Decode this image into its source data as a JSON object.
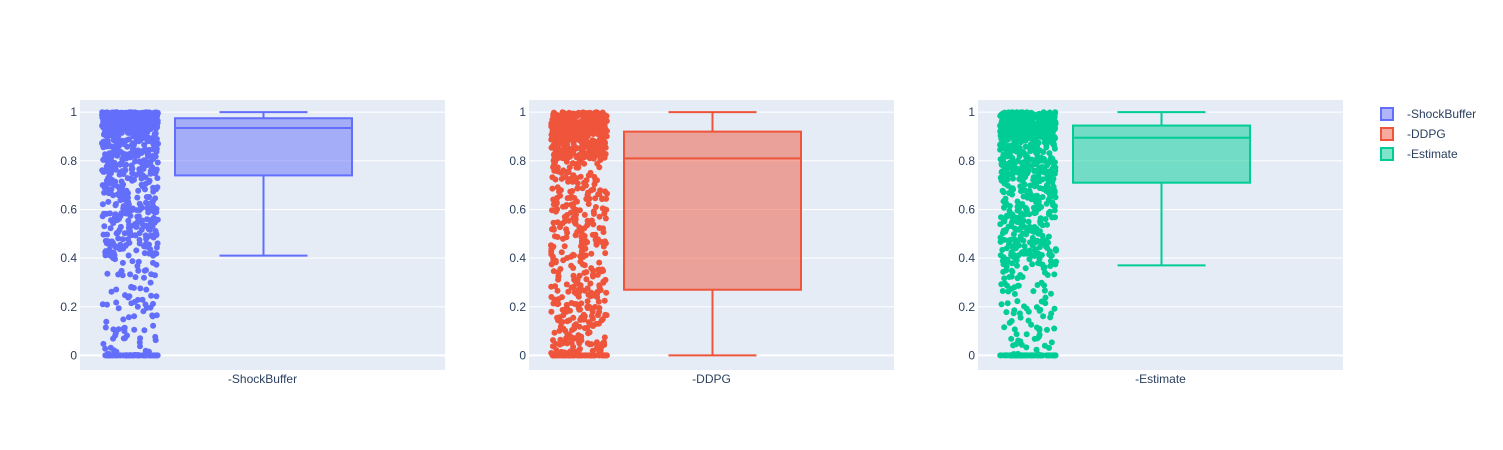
{
  "colors": {
    "plot_bg": "#e5ecf6",
    "grid": "#ffffff",
    "text": "#2a3f5f"
  },
  "chart_data": [
    {
      "type": "box",
      "category": "-ShockBuffer",
      "color": "#636efa",
      "box": {
        "min": 0.41,
        "q1": 0.74,
        "median": 0.935,
        "q3": 0.975,
        "max": 1.0
      },
      "points": "jittered outcome points in [0, 1], dense near 0 and near 1",
      "yticks": [
        0,
        0.2,
        0.4,
        0.6,
        0.8,
        1
      ],
      "ylim": [
        -0.06,
        1.05
      ]
    },
    {
      "type": "box",
      "category": "-DDPG",
      "color": "#ef553b",
      "box": {
        "min": 0.0,
        "q1": 0.27,
        "median": 0.81,
        "q3": 0.92,
        "max": 1.0
      },
      "points": "jittered outcome points in [0, 1], dense near 0 and near 1",
      "yticks": [
        0,
        0.2,
        0.4,
        0.6,
        0.8,
        1
      ],
      "ylim": [
        -0.06,
        1.05
      ]
    },
    {
      "type": "box",
      "category": "-Estimate",
      "color": "#00cc96",
      "box": {
        "min": 0.37,
        "q1": 0.71,
        "median": 0.895,
        "q3": 0.945,
        "max": 1.0
      },
      "points": "jittered outcome points in [0, 1], dense near 0 and near 1",
      "yticks": [
        0,
        0.2,
        0.4,
        0.6,
        0.8,
        1
      ],
      "ylim": [
        -0.06,
        1.05
      ]
    }
  ],
  "legend": {
    "placement": "top-right",
    "items": [
      "-ShockBuffer",
      "-DDPG",
      "-Estimate"
    ]
  }
}
